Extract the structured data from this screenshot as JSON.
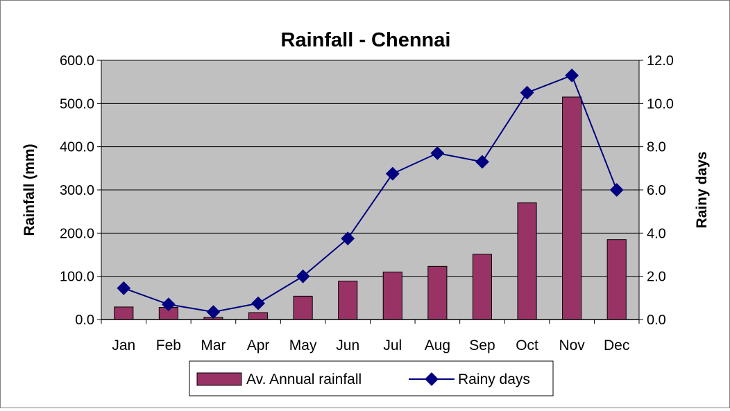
{
  "chart_data": {
    "type": "bar",
    "title": "Rainfall - Chennai",
    "categories": [
      "Jan",
      "Feb",
      "Mar",
      "Apr",
      "May",
      "Jun",
      "Jul",
      "Aug",
      "Sep",
      "Oct",
      "Nov",
      "Dec"
    ],
    "series": [
      {
        "name": "Av. Annual rainfall",
        "kind": "bar",
        "axis": "left",
        "color": "#993366",
        "values": [
          29.0,
          28.0,
          5.0,
          16.0,
          54.0,
          89.0,
          110.0,
          123.0,
          151.0,
          270.0,
          515.0,
          185.0
        ]
      },
      {
        "name": "Rainy days",
        "kind": "line",
        "axis": "right",
        "color": "#000080",
        "values": [
          1.45,
          0.7,
          0.35,
          0.75,
          2.0,
          3.75,
          6.75,
          7.7,
          7.3,
          10.5,
          11.3,
          6.0
        ]
      }
    ],
    "ylabel": "Rainfall (mm)",
    "ylim": [
      0,
      600
    ],
    "yticks": [
      "0.0",
      "100.0",
      "200.0",
      "300.0",
      "400.0",
      "500.0",
      "600.0"
    ],
    "y2label": "Rainy days",
    "y2lim": [
      0,
      12
    ],
    "y2ticks": [
      "0.0",
      "2.0",
      "4.0",
      "6.0",
      "8.0",
      "10.0",
      "12.0"
    ],
    "grid": true,
    "plot_background": "#c0c0c0",
    "legend": {
      "position": "bottom",
      "entries": [
        "Av. Annual rainfall",
        "Rainy days"
      ]
    }
  }
}
